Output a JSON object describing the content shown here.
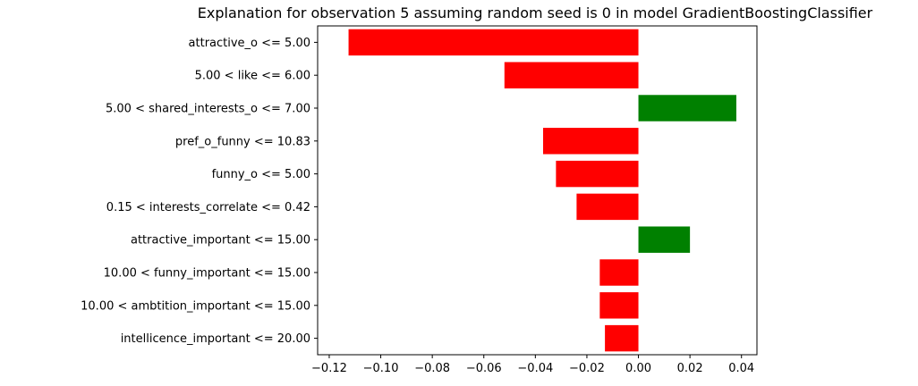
{
  "chart_data": {
    "type": "bar",
    "orientation": "horizontal",
    "title": "Explanation for observation 5 assuming random seed is 0 in model GradientBoostingClassifier",
    "xlabel": "",
    "ylabel": "",
    "categories": [
      "attractive_o <= 5.00",
      "5.00 < like <= 6.00",
      "5.00 < shared_interests_o <= 7.00",
      "pref_o_funny <= 10.83",
      "funny_o <= 5.00",
      "0.15 < interests_correlate <= 0.42",
      "attractive_important <= 15.00",
      "10.00 < funny_important <= 15.00",
      "10.00 < ambtition_important <= 15.00",
      "intellicence_important <= 20.00"
    ],
    "values": [
      -0.1125,
      -0.052,
      0.038,
      -0.037,
      -0.032,
      -0.024,
      0.02,
      -0.015,
      -0.015,
      -0.013
    ],
    "xlim": [
      -0.1245,
      0.046
    ],
    "xticks": [
      -0.12,
      -0.1,
      -0.08,
      -0.06,
      -0.04,
      -0.02,
      0.0,
      0.02,
      0.04
    ],
    "xtick_labels": [
      "−0.12",
      "−0.10",
      "−0.08",
      "−0.06",
      "−0.04",
      "−0.02",
      "0.00",
      "0.02",
      "0.04"
    ],
    "colors": {
      "positive": "#008000",
      "negative": "#ff0000"
    },
    "grid": false,
    "legend": "none"
  }
}
